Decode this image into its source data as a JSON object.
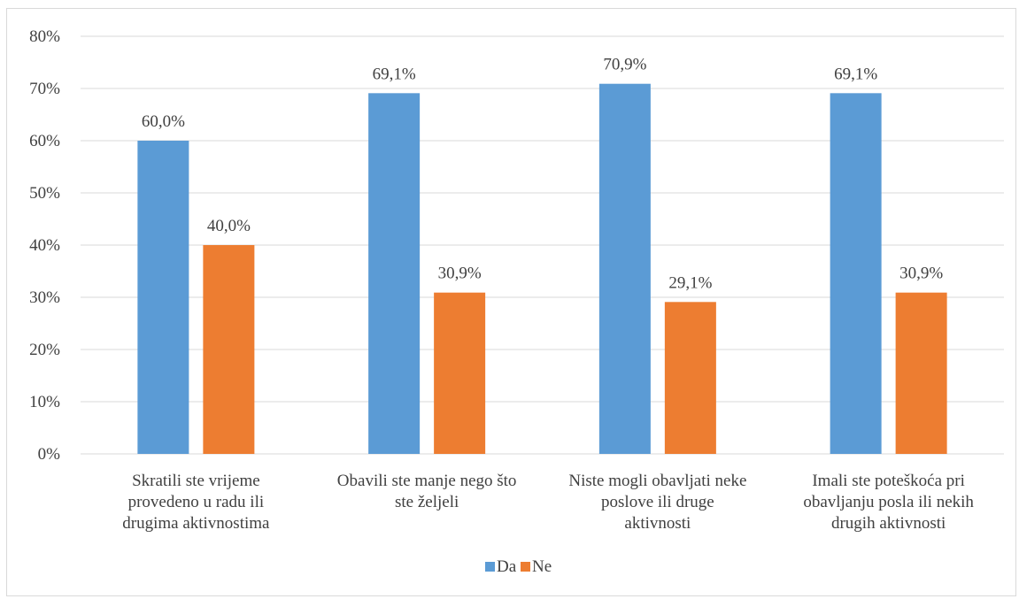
{
  "chart_data": {
    "type": "bar",
    "title": "",
    "xlabel": "",
    "ylabel": "",
    "ylim": [
      0,
      80
    ],
    "y_tick_step": 10,
    "y_tick_suffix": "%",
    "grid": true,
    "legend_position": "bottom",
    "categories": [
      [
        "Skratili ste vrijeme",
        "provedeno u radu ili",
        "drugima aktivnostima"
      ],
      [
        "Obavili ste manje nego što",
        "ste željeli"
      ],
      [
        "Niste mogli obavljati neke",
        "poslove ili druge",
        "aktivnosti"
      ],
      [
        "Imali ste poteškoća pri",
        "obavljanju posla ili nekih",
        "drugih aktivnosti"
      ]
    ],
    "series": [
      {
        "name": "Da",
        "color": "#5b9bd5",
        "values": [
          60.0,
          69.1,
          70.9,
          69.1
        ],
        "labels": [
          "60,0%",
          "69,1%",
          "70,9%",
          "69,1%"
        ]
      },
      {
        "name": "Ne",
        "color": "#ed7d31",
        "values": [
          40.0,
          30.9,
          29.1,
          30.9
        ],
        "labels": [
          "40,0%",
          "30,9%",
          "29,1%",
          "30,9%"
        ]
      }
    ]
  }
}
